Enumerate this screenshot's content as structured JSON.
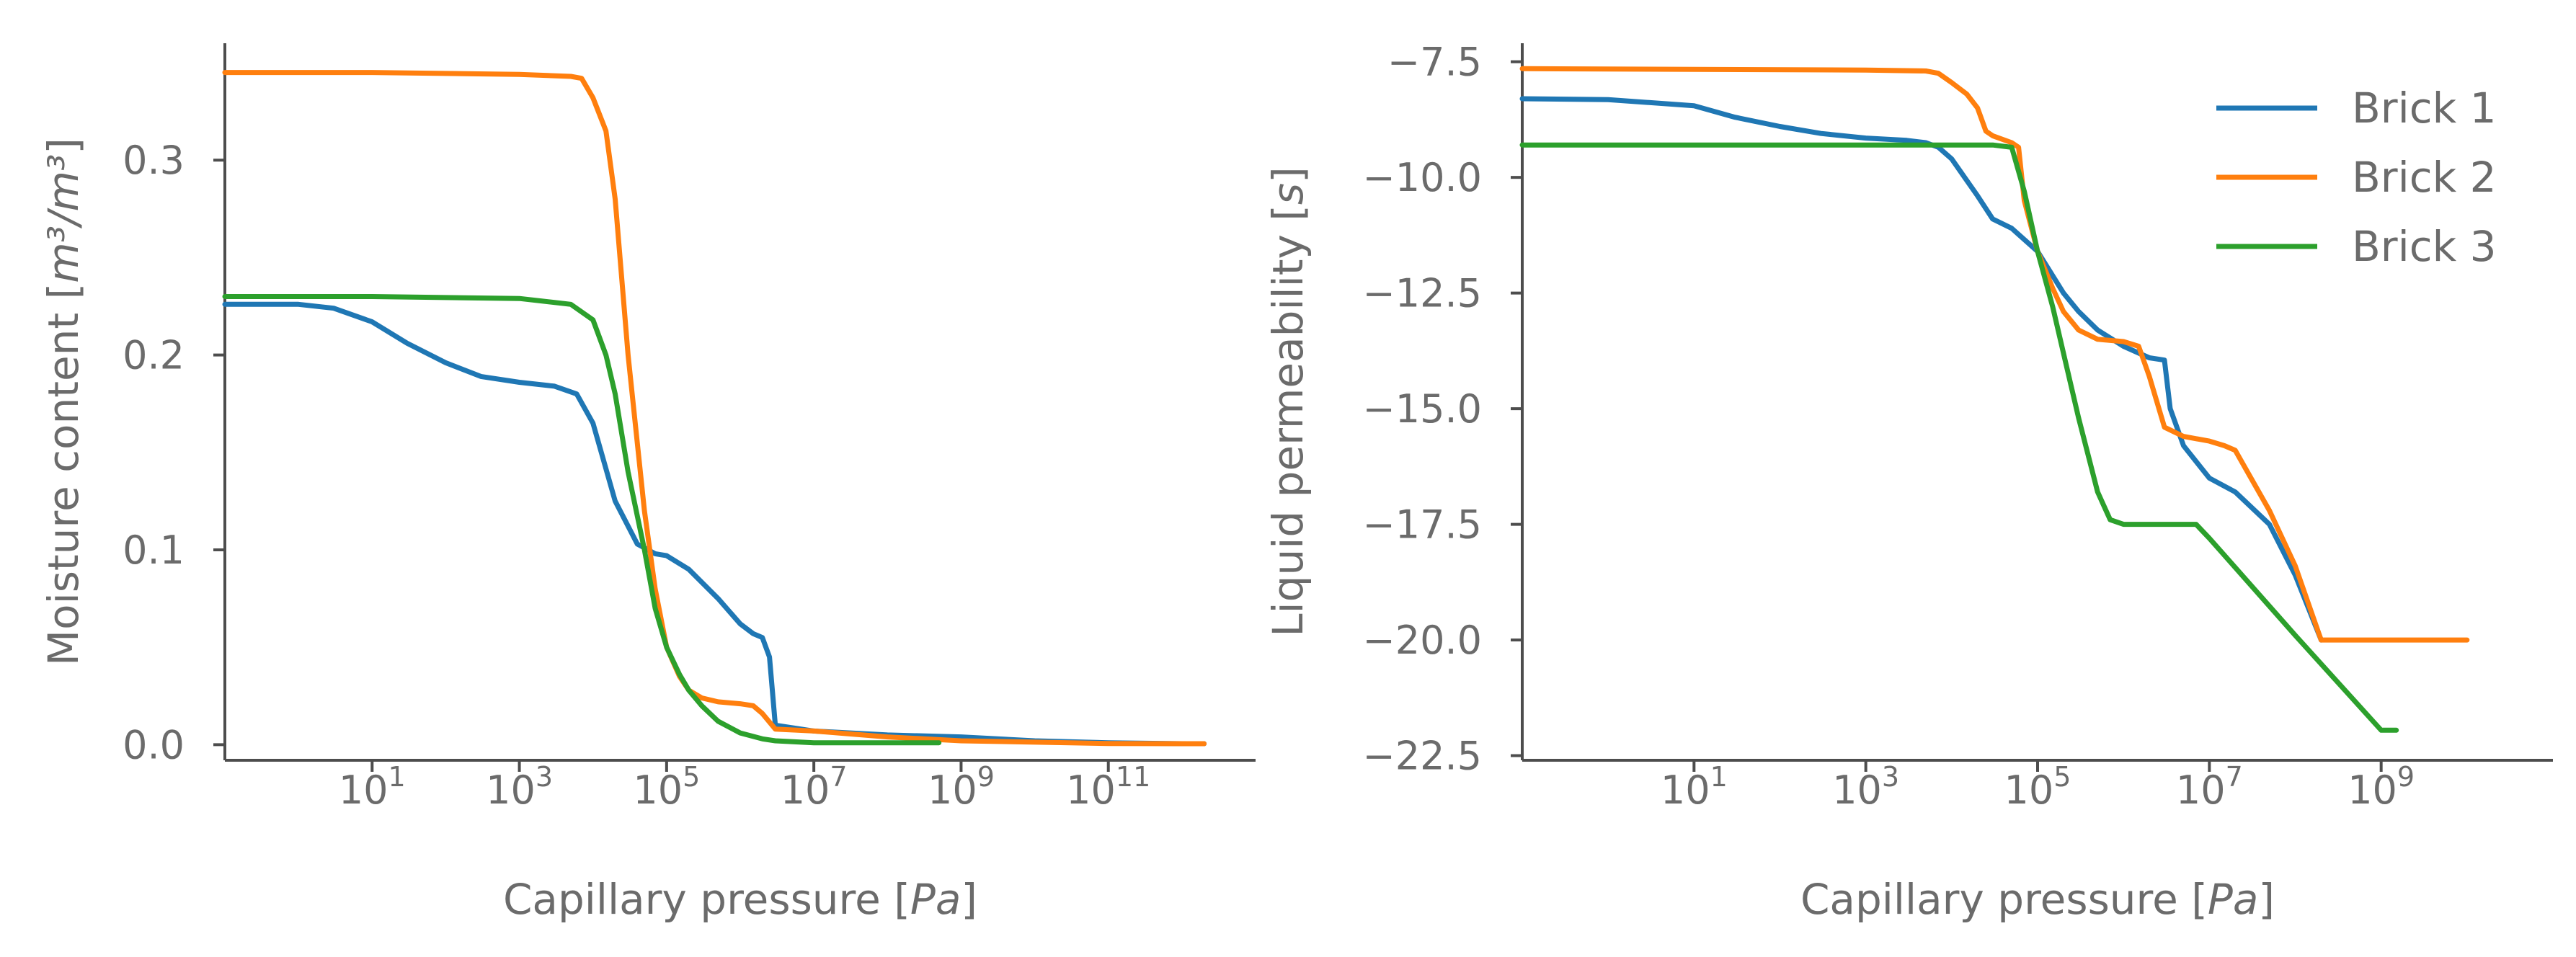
{
  "colors": {
    "brick1": "#1f77b4",
    "brick2": "#ff7f0e",
    "brick3": "#2ca02c"
  },
  "chart_data": [
    {
      "type": "line",
      "title": "",
      "xlabel": {
        "text": "Capillary pressure [",
        "unit": "Pa",
        "close": "]"
      },
      "ylabel": {
        "text": "Moisture content [",
        "unit": "m³/m³",
        "close": "]"
      },
      "x_scale": "log",
      "xlim": [
        0.1,
        10000000000000
      ],
      "ylim": [
        -0.008,
        0.36
      ],
      "x_ticks": [
        {
          "value": 10,
          "base": "10",
          "exp": "1"
        },
        {
          "value": 1000,
          "base": "10",
          "exp": "3"
        },
        {
          "value": 100000,
          "base": "10",
          "exp": "5"
        },
        {
          "value": 10000000,
          "base": "10",
          "exp": "7"
        },
        {
          "value": 1000000000,
          "base": "10",
          "exp": "9"
        },
        {
          "value": 100000000000,
          "base": "10",
          "exp": "11"
        }
      ],
      "y_ticks": [
        {
          "value": 0.0,
          "label": "0.0"
        },
        {
          "value": 0.1,
          "label": "0.1"
        },
        {
          "value": 0.2,
          "label": "0.2"
        },
        {
          "value": 0.3,
          "label": "0.3"
        }
      ],
      "grid": false,
      "series": [
        {
          "name": "Brick 1",
          "color_key": "brick1",
          "x": [
            0.1,
            1,
            3,
            10,
            30,
            100,
            300,
            1000,
            3000,
            6000,
            10000,
            20000,
            40000,
            70000,
            100000,
            200000,
            500000,
            1000000,
            1500000,
            2000000,
            2500000,
            3000000,
            10000000,
            100000000,
            1000000000,
            10000000000,
            100000000000,
            1000000000000,
            2000000000000
          ],
          "y": [
            0.226,
            0.226,
            0.224,
            0.217,
            0.206,
            0.196,
            0.189,
            0.186,
            0.184,
            0.18,
            0.165,
            0.125,
            0.103,
            0.098,
            0.097,
            0.09,
            0.075,
            0.062,
            0.057,
            0.055,
            0.045,
            0.01,
            0.007,
            0.005,
            0.004,
            0.002,
            0.001,
            0.0005,
            0.0005
          ]
        },
        {
          "name": "Brick 2",
          "color_key": "brick2",
          "x": [
            0.1,
            10,
            1000,
            5000,
            7000,
            10000,
            15000,
            20000,
            30000,
            50000,
            70000,
            100000,
            150000,
            200000,
            300000,
            500000,
            1000000,
            1500000,
            2000000,
            3000000,
            10000000,
            100000000,
            1000000000,
            100000000000,
            2000000000000
          ],
          "y": [
            0.345,
            0.345,
            0.344,
            0.343,
            0.342,
            0.332,
            0.315,
            0.28,
            0.2,
            0.12,
            0.08,
            0.05,
            0.035,
            0.028,
            0.024,
            0.022,
            0.021,
            0.02,
            0.016,
            0.008,
            0.007,
            0.004,
            0.002,
            0.0006,
            0.0005
          ]
        },
        {
          "name": "Brick 3",
          "color_key": "brick3",
          "x": [
            0.1,
            10,
            1000,
            5000,
            10000,
            15000,
            20000,
            30000,
            50000,
            70000,
            100000,
            150000,
            200000,
            300000,
            500000,
            1000000,
            2000000,
            3000000,
            10000000,
            100000000,
            500000000
          ],
          "y": [
            0.23,
            0.23,
            0.229,
            0.226,
            0.218,
            0.2,
            0.18,
            0.14,
            0.1,
            0.07,
            0.05,
            0.036,
            0.028,
            0.02,
            0.012,
            0.006,
            0.003,
            0.002,
            0.001,
            0.001,
            0.001
          ]
        }
      ]
    },
    {
      "type": "line",
      "title": "",
      "xlabel": {
        "text": "Capillary pressure [",
        "unit": "Pa",
        "close": "]"
      },
      "ylabel": {
        "text": "Liquid permeability [",
        "unit": "s",
        "close": "]"
      },
      "x_scale": "log",
      "xlim": [
        0.1,
        100000000000
      ],
      "ylim": [
        -22.6,
        -7.1
      ],
      "x_ticks": [
        {
          "value": 10,
          "base": "10",
          "exp": "1"
        },
        {
          "value": 1000,
          "base": "10",
          "exp": "3"
        },
        {
          "value": 100000,
          "base": "10",
          "exp": "5"
        },
        {
          "value": 10000000,
          "base": "10",
          "exp": "7"
        },
        {
          "value": 1000000000,
          "base": "10",
          "exp": "9"
        }
      ],
      "y_ticks": [
        {
          "value": -7.5,
          "label": "−7.5"
        },
        {
          "value": -10.0,
          "label": "−10.0"
        },
        {
          "value": -12.5,
          "label": "−12.5"
        },
        {
          "value": -15.0,
          "label": "−15.0"
        },
        {
          "value": -17.5,
          "label": "−17.5"
        },
        {
          "value": -20.0,
          "label": "−20.0"
        },
        {
          "value": -22.5,
          "label": "−22.5"
        }
      ],
      "grid": false,
      "legend": {
        "placement": "top-right",
        "entries": [
          "Brick 1",
          "Brick 2",
          "Brick 3"
        ]
      },
      "series": [
        {
          "name": "Brick 1",
          "color_key": "brick1",
          "x": [
            0.1,
            1,
            10,
            30,
            100,
            300,
            1000,
            3000,
            5000,
            7000,
            10000,
            20000,
            30000,
            50000,
            100000,
            200000,
            300000,
            500000,
            1000000,
            2000000,
            3000000,
            3500000,
            5000000,
            10000000,
            20000000,
            50000000,
            100000000,
            200000000
          ],
          "y": [
            -8.3,
            -8.32,
            -8.45,
            -8.7,
            -8.9,
            -9.05,
            -9.15,
            -9.2,
            -9.25,
            -9.35,
            -9.6,
            -10.4,
            -10.9,
            -11.1,
            -11.6,
            -12.5,
            -12.9,
            -13.3,
            -13.65,
            -13.9,
            -13.95,
            -15.0,
            -15.8,
            -16.5,
            -16.8,
            -17.5,
            -18.6,
            -20.0
          ]
        },
        {
          "name": "Brick 2",
          "color_key": "brick2",
          "x": [
            0.1,
            1000,
            5000,
            7000,
            10000,
            15000,
            20000,
            25000,
            30000,
            50000,
            60000,
            70000,
            100000,
            150000,
            200000,
            300000,
            500000,
            1000000,
            1500000,
            2000000,
            3000000,
            5000000,
            10000000,
            15000000,
            20000000,
            50000000,
            100000000,
            200000000,
            1000000000,
            10000000000
          ],
          "y": [
            -7.65,
            -7.68,
            -7.7,
            -7.75,
            -7.95,
            -8.2,
            -8.5,
            -9.0,
            -9.1,
            -9.25,
            -9.35,
            -10.5,
            -11.6,
            -12.4,
            -12.9,
            -13.3,
            -13.5,
            -13.55,
            -13.65,
            -14.3,
            -15.4,
            -15.6,
            -15.7,
            -15.8,
            -15.9,
            -17.2,
            -18.4,
            -20.0,
            -20.0,
            -20.0
          ]
        },
        {
          "name": "Brick 3",
          "color_key": "brick3",
          "x": [
            0.1,
            100,
            1000,
            10000,
            30000,
            50000,
            70000,
            100000,
            150000,
            200000,
            300000,
            500000,
            700000,
            1000000,
            3000000,
            5000000,
            7000000,
            10000000,
            100000000,
            1000000000,
            1500000000
          ],
          "y": [
            -9.3,
            -9.3,
            -9.3,
            -9.3,
            -9.3,
            -9.35,
            -10.3,
            -11.6,
            -12.8,
            -13.8,
            -15.2,
            -16.8,
            -17.4,
            -17.5,
            -17.5,
            -17.5,
            -17.5,
            -17.8,
            -19.9,
            -21.95,
            -21.95
          ]
        }
      ]
    }
  ]
}
